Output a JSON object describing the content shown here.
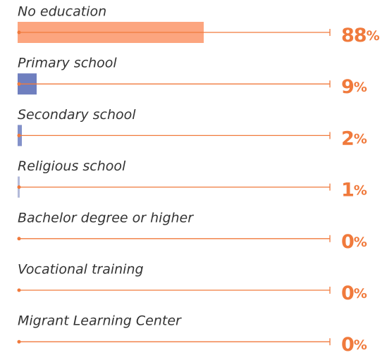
{
  "chart_data": {
    "type": "bar",
    "categories": [
      "No education",
      "Primary school",
      "Secondary school",
      "Religious school",
      "Bachelor degree or higher",
      "Vocational training",
      "Migrant Learning Center"
    ],
    "values": [
      88,
      9,
      2,
      1,
      0,
      0,
      0
    ],
    "value_labels": [
      "88%",
      "9%",
      "2%",
      "1%",
      "0%",
      "0%",
      "0%"
    ],
    "colors": [
      "#fca57f",
      "#6f7fbf",
      "#8391c9",
      "#b3bad9",
      "#b3bad9",
      "#b3bad9",
      "#b3bad9"
    ],
    "line_color": "#f07a3c",
    "xlim": [
      0,
      100
    ]
  }
}
